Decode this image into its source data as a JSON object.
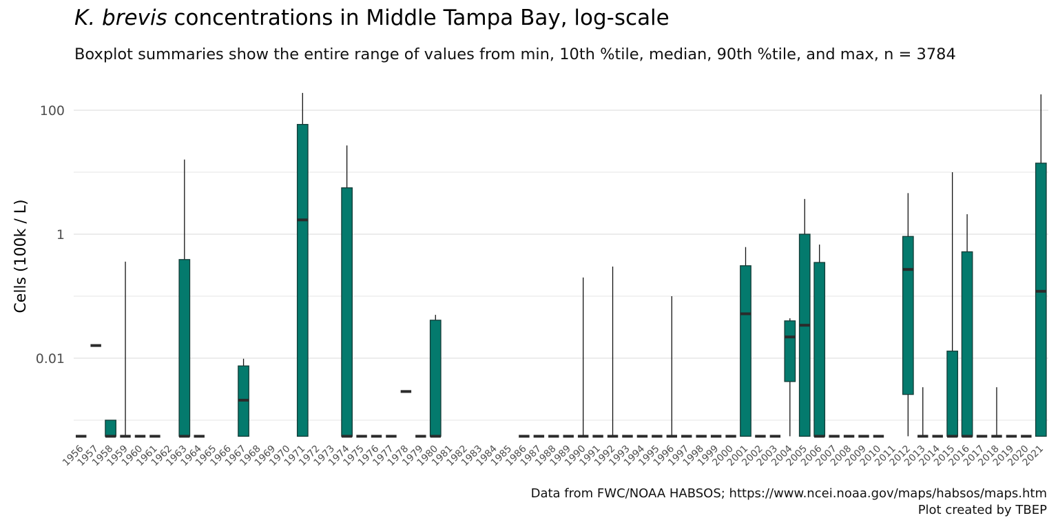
{
  "title_species": "K. brevis",
  "title_rest": " concentrations in Middle Tampa Bay, log-scale",
  "subtitle": "Boxplot summaries show the entire range of values from min, 10th %tile, median, 90th %tile, and max, n = 3784",
  "caption_line1": "Data from FWC/NOAA HABSOS; https://www.ncei.noaa.gov/maps/habsos/maps.htm",
  "caption_line2": "Plot created by TBEP",
  "colors": {
    "box_fill": "#047a6d",
    "box_edge": "#143b36",
    "median": "#2b2b2b",
    "grid": "#e6e6e6",
    "tick_text": "#4d4d4d"
  },
  "chart_data": {
    "type": "boxplot",
    "ylabel": "Cells (100k / L)",
    "xlabel": "",
    "y_scale": "log10",
    "ylim": [
      0.0005,
      200
    ],
    "y_ticks": [
      100,
      1,
      0.01
    ],
    "y_tick_labels": [
      "100",
      "1",
      "0.01"
    ],
    "grid": true,
    "categories": [
      "1956",
      "1957",
      "1958",
      "1959",
      "1960",
      "1961",
      "1962",
      "1963",
      "1964",
      "1965",
      "1966",
      "1967",
      "1968",
      "1969",
      "1970",
      "1971",
      "1972",
      "1973",
      "1974",
      "1975",
      "1976",
      "1977",
      "1978",
      "1979",
      "1980",
      "1981",
      "1982",
      "1983",
      "1984",
      "1985",
      "1986",
      "1987",
      "1988",
      "1989",
      "1990",
      "1991",
      "1992",
      "1993",
      "1994",
      "1995",
      "1996",
      "1997",
      "1998",
      "1999",
      "2000",
      "2001",
      "2002",
      "2003",
      "2004",
      "2005",
      "2006",
      "2007",
      "2008",
      "2009",
      "2010",
      "2011",
      "2012",
      "2013",
      "2014",
      "2015",
      "2016",
      "2017",
      "2018",
      "2019",
      "2020",
      "2021"
    ],
    "boxes": [
      {
        "year": "1956",
        "min": 0.00055,
        "p10": 0.00055,
        "median": 0.00055,
        "p90": 0.00055,
        "max": 0.00055
      },
      {
        "year": "1957",
        "min": 0.016,
        "p10": 0.016,
        "median": 0.016,
        "p90": 0.016,
        "max": 0.016
      },
      {
        "year": "1958",
        "min": 0.00055,
        "p10": 0.00055,
        "median": 0.00055,
        "p90": 0.001,
        "max": 0.001
      },
      {
        "year": "1959",
        "min": 0.00055,
        "p10": 0.00055,
        "median": 0.00055,
        "p90": 0.00055,
        "max": 0.36
      },
      {
        "year": "1960",
        "min": 0.00055,
        "p10": 0.00055,
        "median": 0.00055,
        "p90": 0.00055,
        "max": 0.00055
      },
      {
        "year": "1961",
        "min": 0.00055,
        "p10": 0.00055,
        "median": 0.00055,
        "p90": 0.00055,
        "max": 0.00055
      },
      {
        "year": "1963",
        "min": 0.00055,
        "p10": 0.00055,
        "median": 0.00055,
        "p90": 0.39,
        "max": 16
      },
      {
        "year": "1964",
        "min": 0.00055,
        "p10": 0.00055,
        "median": 0.00055,
        "p90": 0.00055,
        "max": 0.00055
      },
      {
        "year": "1967",
        "min": 0.00055,
        "p10": 0.00055,
        "median": 0.0021,
        "p90": 0.0075,
        "max": 0.0098
      },
      {
        "year": "1971",
        "min": 0.00055,
        "p10": 0.00055,
        "median": 1.7,
        "p90": 59,
        "max": 190
      },
      {
        "year": "1974",
        "min": 0.00055,
        "p10": 0.00055,
        "median": 0.00055,
        "p90": 5.6,
        "max": 27
      },
      {
        "year": "1975",
        "min": 0.00055,
        "p10": 0.00055,
        "median": 0.00055,
        "p90": 0.00055,
        "max": 0.00055
      },
      {
        "year": "1976",
        "min": 0.00055,
        "p10": 0.00055,
        "median": 0.00055,
        "p90": 0.00055,
        "max": 0.00055
      },
      {
        "year": "1977",
        "min": 0.00055,
        "p10": 0.00055,
        "median": 0.00055,
        "p90": 0.00055,
        "max": 0.00055
      },
      {
        "year": "1978",
        "min": 0.0029,
        "p10": 0.0029,
        "median": 0.0029,
        "p90": 0.0029,
        "max": 0.0029
      },
      {
        "year": "1979",
        "min": 0.00055,
        "p10": 0.00055,
        "median": 0.00055,
        "p90": 0.00055,
        "max": 0.00055
      },
      {
        "year": "1980",
        "min": 0.00055,
        "p10": 0.00055,
        "median": 0.00055,
        "p90": 0.041,
        "max": 0.05
      },
      {
        "year": "1986",
        "min": 0.00055,
        "p10": 0.00055,
        "median": 0.00055,
        "p90": 0.00055,
        "max": 0.00055
      },
      {
        "year": "1987",
        "min": 0.00055,
        "p10": 0.00055,
        "median": 0.00055,
        "p90": 0.00055,
        "max": 0.00055
      },
      {
        "year": "1988",
        "min": 0.00055,
        "p10": 0.00055,
        "median": 0.00055,
        "p90": 0.00055,
        "max": 0.00055
      },
      {
        "year": "1989",
        "min": 0.00055,
        "p10": 0.00055,
        "median": 0.00055,
        "p90": 0.00055,
        "max": 0.00055
      },
      {
        "year": "1990",
        "min": 0.00055,
        "p10": 0.00055,
        "median": 0.00055,
        "p90": 0.00055,
        "max": 0.2
      },
      {
        "year": "1991",
        "min": 0.00055,
        "p10": 0.00055,
        "median": 0.00055,
        "p90": 0.00055,
        "max": 0.00055
      },
      {
        "year": "1992",
        "min": 0.00055,
        "p10": 0.00055,
        "median": 0.00055,
        "p90": 0.00055,
        "max": 0.3
      },
      {
        "year": "1993",
        "min": 0.00055,
        "p10": 0.00055,
        "median": 0.00055,
        "p90": 0.00055,
        "max": 0.00055
      },
      {
        "year": "1994",
        "min": 0.00055,
        "p10": 0.00055,
        "median": 0.00055,
        "p90": 0.00055,
        "max": 0.00055
      },
      {
        "year": "1995",
        "min": 0.00055,
        "p10": 0.00055,
        "median": 0.00055,
        "p90": 0.00055,
        "max": 0.00055
      },
      {
        "year": "1996",
        "min": 0.00055,
        "p10": 0.00055,
        "median": 0.00055,
        "p90": 0.00055,
        "max": 0.1
      },
      {
        "year": "1997",
        "min": 0.00055,
        "p10": 0.00055,
        "median": 0.00055,
        "p90": 0.00055,
        "max": 0.00055
      },
      {
        "year": "1998",
        "min": 0.00055,
        "p10": 0.00055,
        "median": 0.00055,
        "p90": 0.00055,
        "max": 0.00055
      },
      {
        "year": "1999",
        "min": 0.00055,
        "p10": 0.00055,
        "median": 0.00055,
        "p90": 0.00055,
        "max": 0.00055
      },
      {
        "year": "2000",
        "min": 0.00055,
        "p10": 0.00055,
        "median": 0.00055,
        "p90": 0.00055,
        "max": 0.00055
      },
      {
        "year": "2001",
        "min": 0.00055,
        "p10": 0.00055,
        "median": 0.052,
        "p90": 0.31,
        "max": 0.62
      },
      {
        "year": "2002",
        "min": 0.00055,
        "p10": 0.00055,
        "median": 0.00055,
        "p90": 0.00055,
        "max": 0.00055
      },
      {
        "year": "2003",
        "min": 0.00055,
        "p10": 0.00055,
        "median": 0.00055,
        "p90": 0.00055,
        "max": 0.00055
      },
      {
        "year": "2004",
        "min": 0.00055,
        "p10": 0.0042,
        "median": 0.022,
        "p90": 0.04,
        "max": 0.044
      },
      {
        "year": "2005",
        "min": 0.00055,
        "p10": 0.00055,
        "median": 0.034,
        "p90": 1,
        "max": 3.7
      },
      {
        "year": "2006",
        "min": 0.00055,
        "p10": 0.00055,
        "median": 0.00055,
        "p90": 0.35,
        "max": 0.68
      },
      {
        "year": "2007",
        "min": 0.00055,
        "p10": 0.00055,
        "median": 0.00055,
        "p90": 0.00055,
        "max": 0.00055
      },
      {
        "year": "2008",
        "min": 0.00055,
        "p10": 0.00055,
        "median": 0.00055,
        "p90": 0.00055,
        "max": 0.00055
      },
      {
        "year": "2009",
        "min": 0.00055,
        "p10": 0.00055,
        "median": 0.00055,
        "p90": 0.00055,
        "max": 0.00055
      },
      {
        "year": "2010",
        "min": 0.00055,
        "p10": 0.00055,
        "median": 0.00055,
        "p90": 0.00055,
        "max": 0.00055
      },
      {
        "year": "2012",
        "min": 0.00055,
        "p10": 0.0026,
        "median": 0.27,
        "p90": 0.92,
        "max": 4.6
      },
      {
        "year": "2013",
        "min": 0.00055,
        "p10": 0.00055,
        "median": 0.00055,
        "p90": 0.00055,
        "max": 0.0034
      },
      {
        "year": "2014",
        "min": 0.00055,
        "p10": 0.00055,
        "median": 0.00055,
        "p90": 0.00055,
        "max": 0.00055
      },
      {
        "year": "2015",
        "min": 0.00055,
        "p10": 0.00055,
        "median": 0.00055,
        "p90": 0.013,
        "max": 10
      },
      {
        "year": "2016",
        "min": 0.00055,
        "p10": 0.00055,
        "median": 0.00055,
        "p90": 0.52,
        "max": 2.1
      },
      {
        "year": "2017",
        "min": 0.00055,
        "p10": 0.00055,
        "median": 0.00055,
        "p90": 0.00055,
        "max": 0.00055
      },
      {
        "year": "2018",
        "min": 0.00055,
        "p10": 0.00055,
        "median": 0.00055,
        "p90": 0.00055,
        "max": 0.0034
      },
      {
        "year": "2019",
        "min": 0.00055,
        "p10": 0.00055,
        "median": 0.00055,
        "p90": 0.00055,
        "max": 0.00055
      },
      {
        "year": "2020",
        "min": 0.00055,
        "p10": 0.00055,
        "median": 0.00055,
        "p90": 0.00055,
        "max": 0.00055
      },
      {
        "year": "2021",
        "min": 0.00055,
        "p10": 0.00055,
        "median": 0.12,
        "p90": 14,
        "max": 180
      }
    ]
  }
}
